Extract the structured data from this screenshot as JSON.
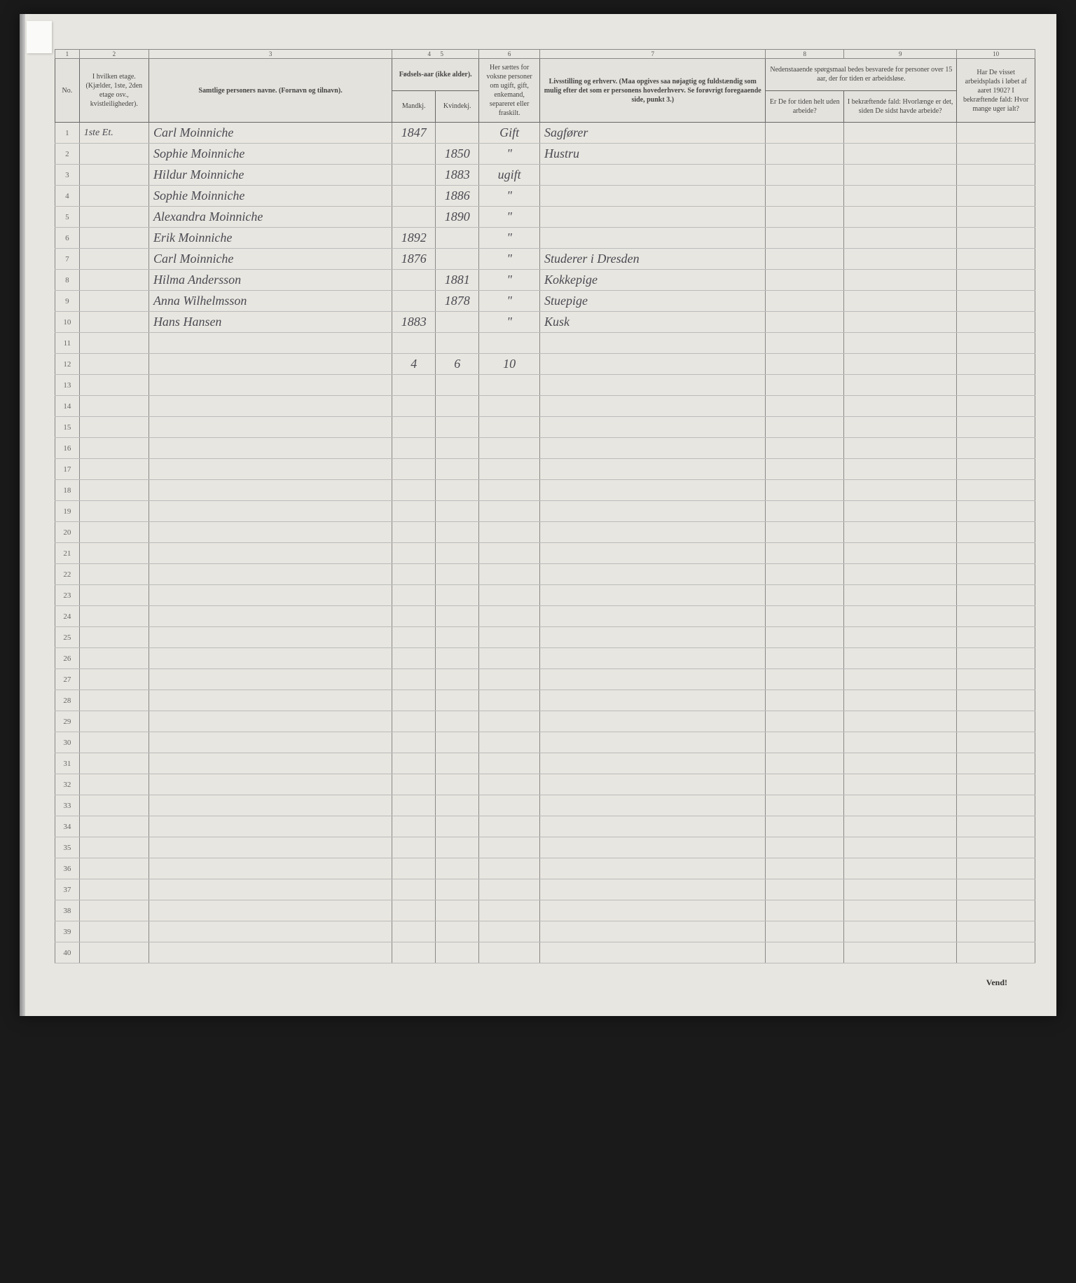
{
  "column_numbers": [
    "1",
    "2",
    "3",
    "4",
    "5",
    "6",
    "7",
    "8",
    "9",
    "10"
  ],
  "headers": {
    "no": "No.",
    "etage": "I hvilken etage.\n(Kjælder, 1ste, 2den etage osv., kvistleiligheder).",
    "name": "Samtlige personers navne.\n(Fornavn og tilnavn).",
    "birth": "Fødsels-aar\n(ikke alder).",
    "birth_m": "Mandkj.",
    "birth_k": "Kvindekj.",
    "marital": "Her sættes for voksne personer om ugift, gift, enkemand, separeret eller fraskilt.",
    "occupation": "Livsstilling og erhverv.\n(Maa opgives saa nøjagtig og fuldstændig som mulig efter det som er personens hovederhverv. Se forøvrigt foregaaende side, punkt 3.)",
    "q8_9_top": "Nedenstaaende spørgsmaal bedes besvarede for personer over 15 aar, der for tiden er arbeidsløse.",
    "q8": "Er De for tiden helt uden arbeide?",
    "q9": "I bekræftende fald: Hvorlænge er det, siden De sidst havde arbeide?",
    "q10": "Har De visset arbeidsplads i løbet af aaret 1902? I bekræftende fald: Hvor mange uger ialt?"
  },
  "rows": [
    {
      "no": "1",
      "etage": "1ste Et.",
      "name": "Carl Moinniche",
      "ym": "1847",
      "yk": "",
      "status": "Gift",
      "occ": "Sagfører"
    },
    {
      "no": "2",
      "etage": "",
      "name": "Sophie Moinniche",
      "ym": "",
      "yk": "1850",
      "status": "\"",
      "occ": "Hustru"
    },
    {
      "no": "3",
      "etage": "",
      "name": "Hildur Moinniche",
      "ym": "",
      "yk": "1883",
      "status": "ugift",
      "occ": ""
    },
    {
      "no": "4",
      "etage": "",
      "name": "Sophie Moinniche",
      "ym": "",
      "yk": "1886",
      "status": "\"",
      "occ": ""
    },
    {
      "no": "5",
      "etage": "",
      "name": "Alexandra Moinniche",
      "ym": "",
      "yk": "1890",
      "status": "\"",
      "occ": ""
    },
    {
      "no": "6",
      "etage": "",
      "name": "Erik Moinniche",
      "ym": "1892",
      "yk": "",
      "status": "\"",
      "occ": ""
    },
    {
      "no": "7",
      "etage": "",
      "name": "Carl Moinniche",
      "ym": "1876",
      "yk": "",
      "status": "\"",
      "occ": "Studerer i Dresden"
    },
    {
      "no": "8",
      "etage": "",
      "name": "Hilma Andersson",
      "ym": "",
      "yk": "1881",
      "status": "\"",
      "occ": "Kokkepige"
    },
    {
      "no": "9",
      "etage": "",
      "name": "Anna Wilhelmsson",
      "ym": "",
      "yk": "1878",
      "status": "\"",
      "occ": "Stuepige"
    },
    {
      "no": "10",
      "etage": "",
      "name": "Hans Hansen",
      "ym": "1883",
      "yk": "",
      "status": "\"",
      "occ": "Kusk"
    },
    {
      "no": "11",
      "etage": "",
      "name": "",
      "ym": "",
      "yk": "",
      "status": "",
      "occ": ""
    },
    {
      "no": "12",
      "etage": "",
      "name": "",
      "ym": "4",
      "yk": "6",
      "status": "10",
      "occ": ""
    }
  ],
  "empty_rows_start": 13,
  "empty_rows_end": 40,
  "footer": "Vend!"
}
